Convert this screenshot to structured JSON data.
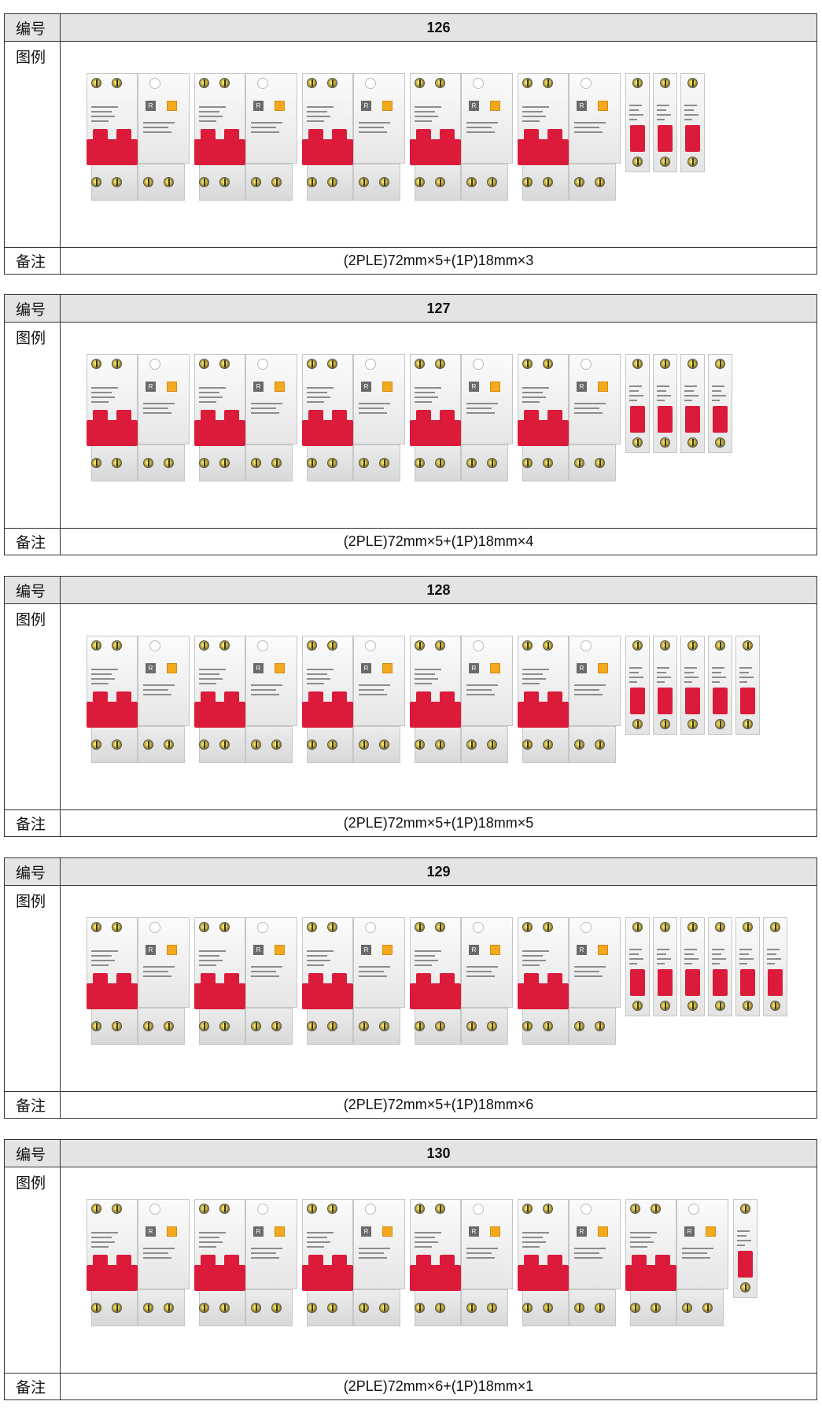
{
  "labels": {
    "number": "编号",
    "legend": "图例",
    "remark": "备注"
  },
  "colors": {
    "header_bg": "#e4e4e4",
    "handle_red": "#dc1b3a",
    "test_button": "#f3a81e",
    "border": "#333333"
  },
  "tables": [
    {
      "number": "126",
      "remark": "(2PLE)72mm×5+(1P)18mm×3",
      "rcbo_count": 5,
      "mcb_count": 3
    },
    {
      "number": "127",
      "remark": "(2PLE)72mm×5+(1P)18mm×4",
      "rcbo_count": 5,
      "mcb_count": 4
    },
    {
      "number": "128",
      "remark": "(2PLE)72mm×5+(1P)18mm×5",
      "rcbo_count": 5,
      "mcb_count": 5
    },
    {
      "number": "129",
      "remark": "(2PLE)72mm×5+(1P)18mm×6",
      "rcbo_count": 5,
      "mcb_count": 6
    },
    {
      "number": "130",
      "remark": "(2PLE)72mm×6+(1P)18mm×1",
      "rcbo_count": 6,
      "mcb_count": 1
    }
  ]
}
